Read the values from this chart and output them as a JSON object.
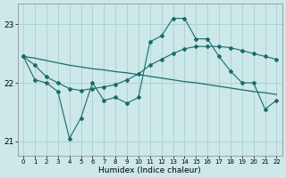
{
  "xlabel": "Humidex (Indice chaleur)",
  "background_color": "#cce8e8",
  "grid_color": "#aacfcf",
  "line_color": "#1a6b6b",
  "xlim": [
    -0.5,
    22.5
  ],
  "ylim": [
    20.75,
    23.35
  ],
  "yticks": [
    21,
    22,
    23
  ],
  "xticks": [
    0,
    1,
    2,
    3,
    4,
    5,
    6,
    7,
    8,
    9,
    10,
    11,
    12,
    13,
    14,
    15,
    16,
    17,
    18,
    19,
    20,
    21,
    22
  ],
  "line1_x": [
    0,
    1,
    2,
    3,
    4,
    5,
    6,
    7,
    8,
    9,
    10,
    11,
    12,
    13,
    14,
    15,
    16,
    17,
    18,
    19,
    20,
    21,
    22
  ],
  "line1_y": [
    22.45,
    22.05,
    22.0,
    21.85,
    21.05,
    21.4,
    22.0,
    21.7,
    21.75,
    21.65,
    21.75,
    22.7,
    22.8,
    23.1,
    23.1,
    22.75,
    22.75,
    22.45,
    22.2,
    22.0,
    22.0,
    21.55,
    21.7
  ],
  "line2_x": [
    0,
    1,
    2,
    3,
    4,
    5,
    6,
    7,
    8,
    9,
    10,
    11,
    12,
    13,
    14,
    15,
    16,
    17,
    18,
    19,
    20,
    21,
    22
  ],
  "line2_y": [
    22.45,
    22.3,
    22.1,
    22.0,
    21.9,
    21.87,
    21.9,
    21.93,
    21.97,
    22.05,
    22.15,
    22.3,
    22.4,
    22.5,
    22.58,
    22.62,
    22.62,
    22.62,
    22.6,
    22.55,
    22.5,
    22.45,
    22.4
  ],
  "line3_x": [
    0,
    1,
    2,
    3,
    4,
    5,
    6,
    7,
    8,
    9,
    10,
    11,
    12,
    13,
    14,
    15,
    16,
    17,
    18,
    19,
    20,
    21,
    22
  ],
  "line3_y": [
    22.45,
    22.42,
    22.38,
    22.34,
    22.3,
    22.27,
    22.24,
    22.22,
    22.19,
    22.17,
    22.14,
    22.11,
    22.08,
    22.05,
    22.02,
    22.0,
    21.97,
    21.94,
    21.91,
    21.88,
    21.85,
    21.83,
    21.8
  ]
}
